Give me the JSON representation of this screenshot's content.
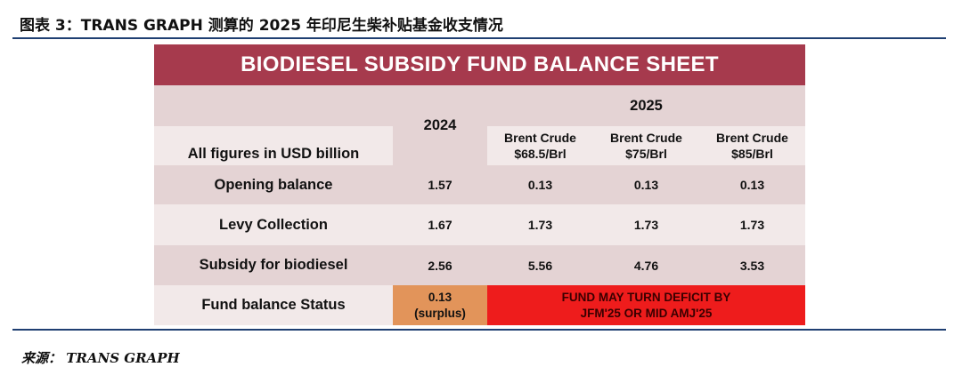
{
  "figure_title": "图表 3：TRANS GRAPH 测算的 2025 年印尼生柴补贴基金收支情况",
  "source_label": "来源：",
  "source_text": "TRANS GRAPH",
  "sheet": {
    "title": "BIODIESEL SUBSIDY FUND BALANCE SHEET",
    "units_label": "All figures in USD billion",
    "year_2024": "2024",
    "year_2025": "2025",
    "scenarios": [
      {
        "line1": "Brent Crude",
        "line2": "$68.5/Brl"
      },
      {
        "line1": "Brent Crude",
        "line2": "$75/Brl"
      },
      {
        "line1": "Brent Crude",
        "line2": "$85/Brl"
      }
    ],
    "rows": [
      {
        "label": "Opening balance",
        "y2024": "1.57",
        "s1": "0.13",
        "s2": "0.13",
        "s3": "0.13"
      },
      {
        "label": "Levy Collection",
        "y2024": "1.67",
        "s1": "1.73",
        "s2": "1.73",
        "s3": "1.73"
      },
      {
        "label": "Subsidy for biodiesel",
        "y2024": "2.56",
        "s1": "5.56",
        "s2": "4.76",
        "s3": "3.53"
      }
    ],
    "status": {
      "label": "Fund balance Status",
      "y2024_value": "0.13",
      "y2024_note": "(surplus)",
      "warning_line1": "FUND MAY TURN DEFICIT BY",
      "warning_line2": "JFM'25 OR MID AMJ'25"
    },
    "colors": {
      "banner": "#a63a4d",
      "surplus": "#e2945a",
      "deficit": "#ee1c1c",
      "rule": "#1f3f72"
    }
  }
}
